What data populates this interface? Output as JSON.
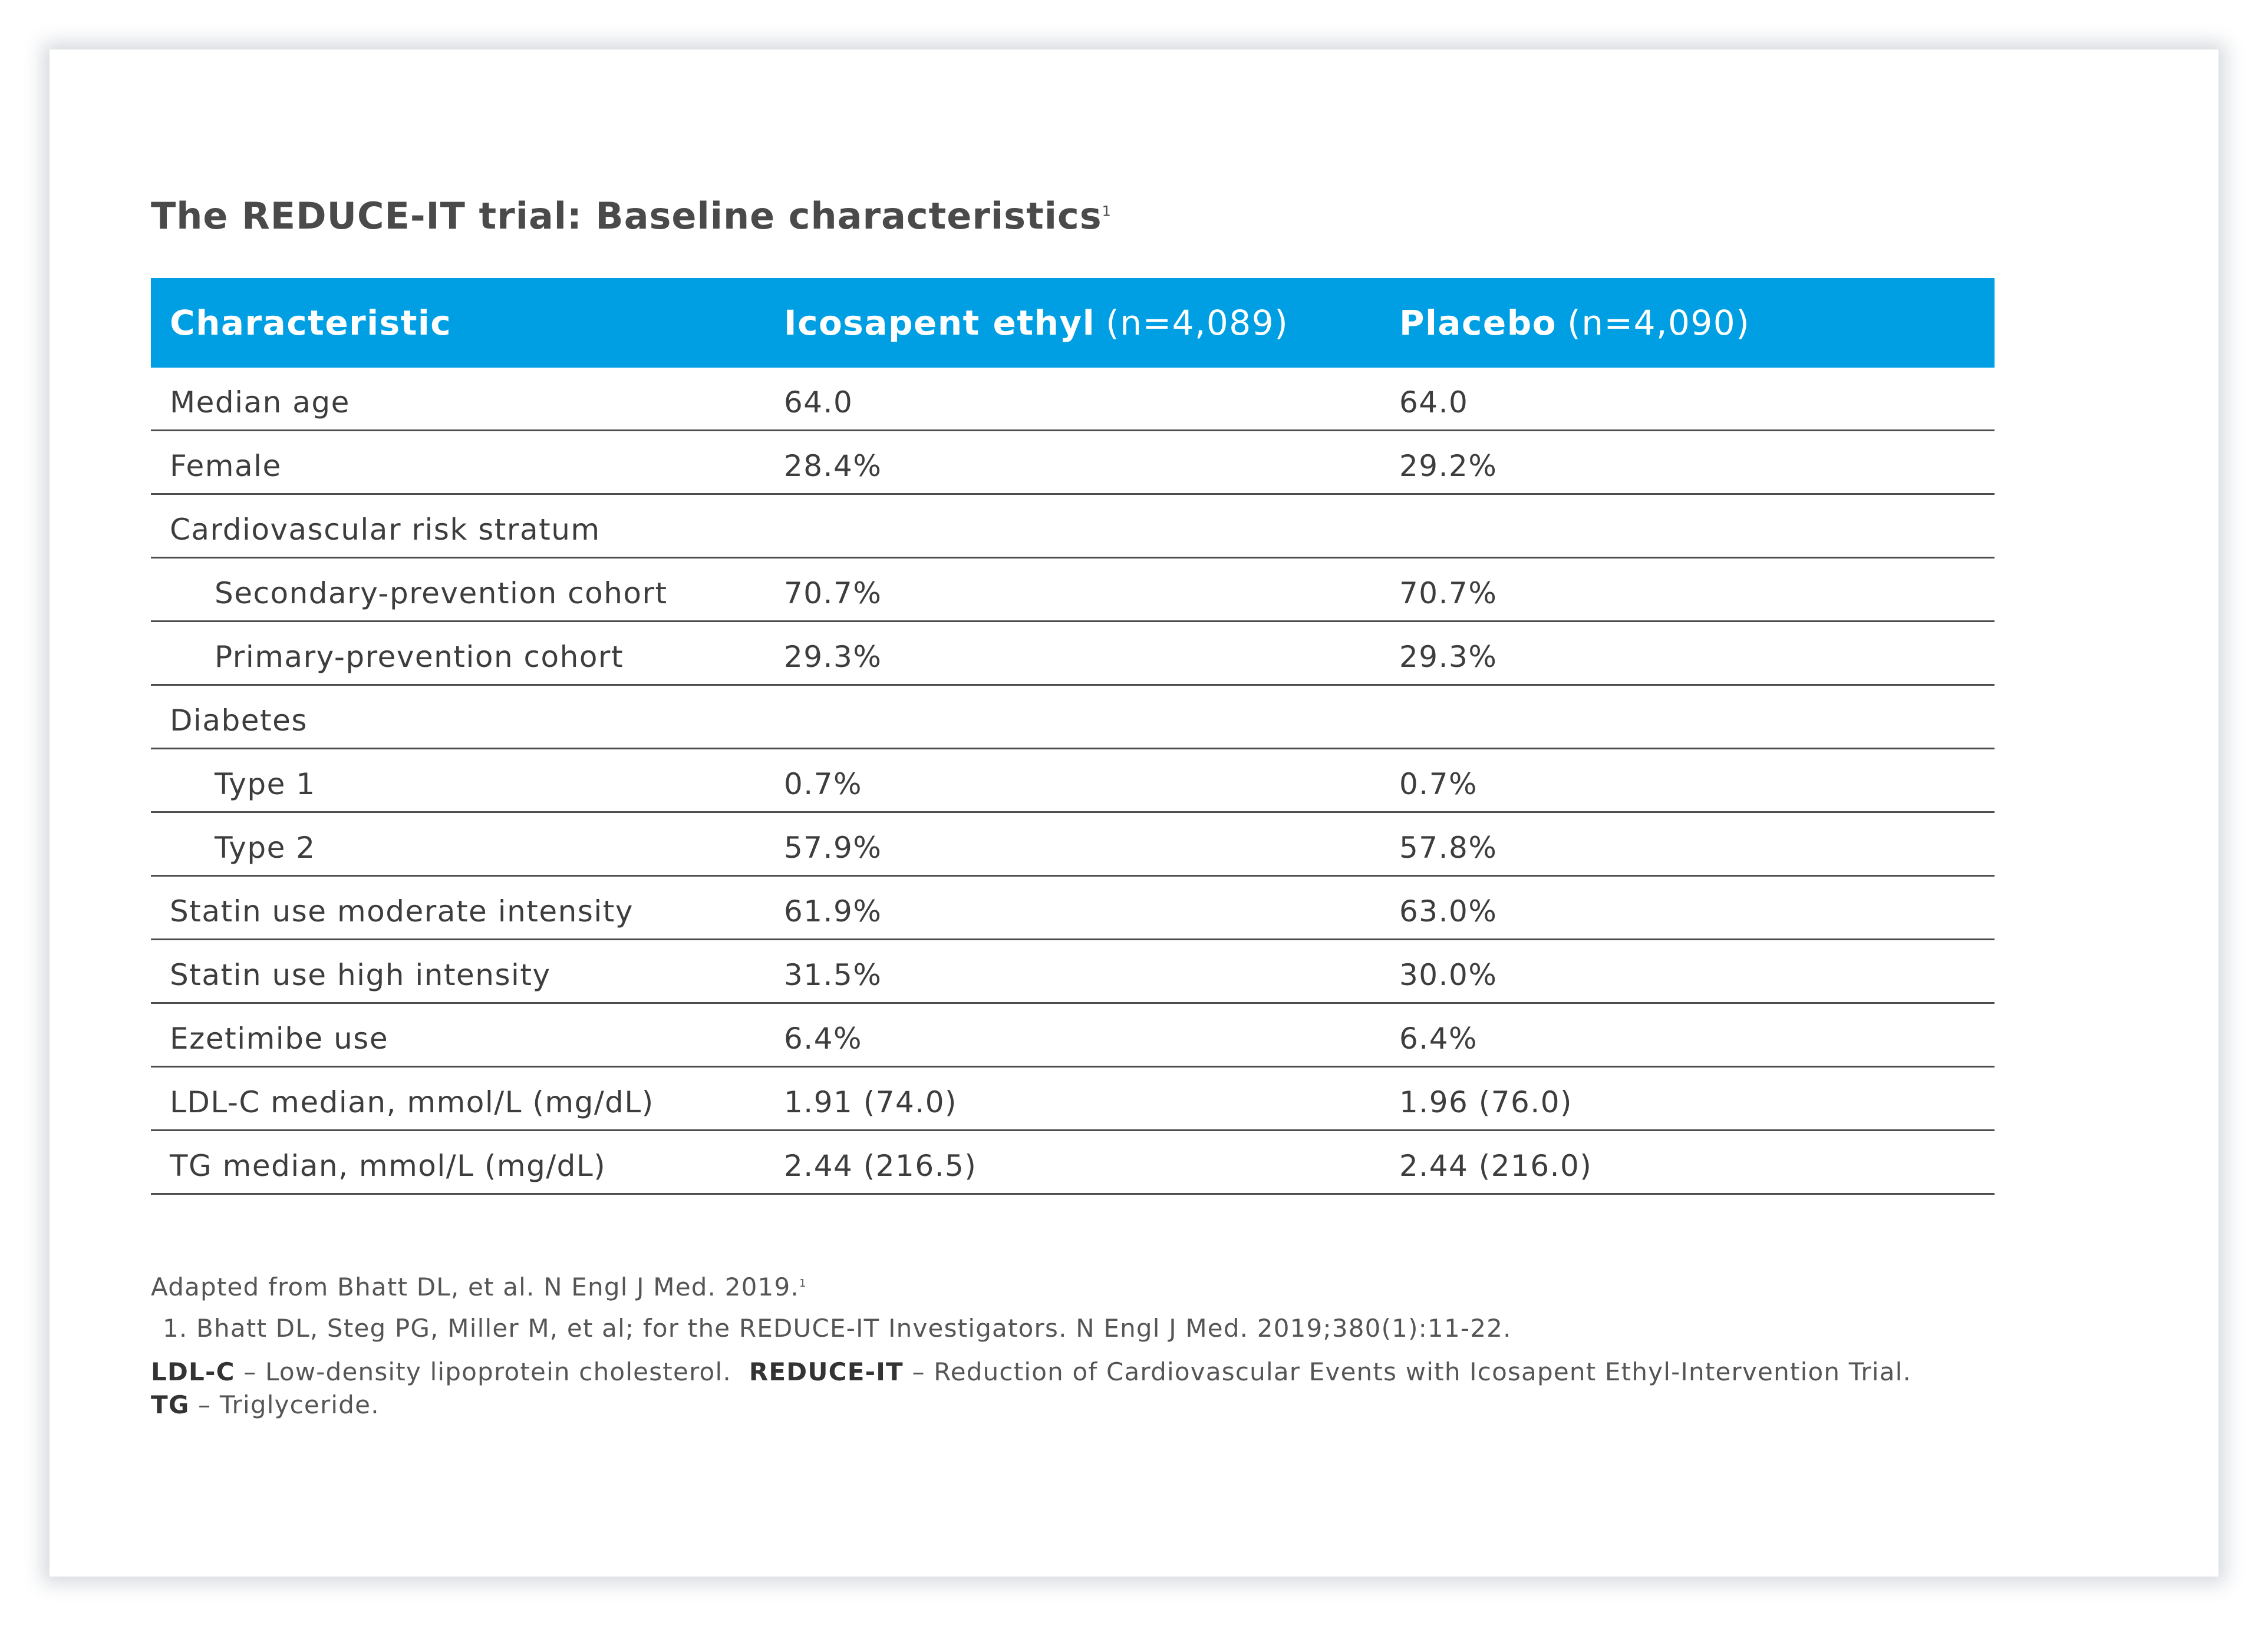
{
  "title": {
    "text": "The REDUCE-IT trial: Baseline characteristics",
    "superscript": "1"
  },
  "table": {
    "header": {
      "characteristic": "Characteristic",
      "group1_name": "Icosapent ethyl",
      "group1_n": "(n=4,089)",
      "group2_name": "Placebo",
      "group2_n": "(n=4,090)"
    },
    "rows": [
      {
        "label": "Median age",
        "indent": false,
        "icosapent": "64.0",
        "placebo": "64.0"
      },
      {
        "label": "Female",
        "indent": false,
        "icosapent": "28.4%",
        "placebo": "29.2%"
      },
      {
        "label": "Cardiovascular risk stratum",
        "indent": false,
        "icosapent": "",
        "placebo": ""
      },
      {
        "label": "Secondary-prevention cohort",
        "indent": true,
        "icosapent": "70.7%",
        "placebo": "70.7%"
      },
      {
        "label": "Primary-prevention cohort",
        "indent": true,
        "icosapent": "29.3%",
        "placebo": "29.3%"
      },
      {
        "label": "Diabetes",
        "indent": false,
        "icosapent": "",
        "placebo": ""
      },
      {
        "label": "Type 1",
        "indent": true,
        "icosapent": "0.7%",
        "placebo": "0.7%"
      },
      {
        "label": "Type 2",
        "indent": true,
        "icosapent": "57.9%",
        "placebo": "57.8%"
      },
      {
        "label": "Statin use moderate intensity",
        "indent": false,
        "icosapent": "61.9%",
        "placebo": "63.0%"
      },
      {
        "label": "Statin use high intensity",
        "indent": false,
        "icosapent": "31.5%",
        "placebo": "30.0%"
      },
      {
        "label": "Ezetimibe use",
        "indent": false,
        "icosapent": "6.4%",
        "placebo": "6.4%"
      },
      {
        "label": "LDL-C median, mmol/L (mg/dL)",
        "indent": false,
        "icosapent": "1.91 (74.0)",
        "placebo": "1.96 (76.0)"
      },
      {
        "label": "TG median, mmol/L (mg/dL)",
        "indent": false,
        "icosapent": "2.44 (216.5)",
        "placebo": "2.44 (216.0)"
      }
    ]
  },
  "notes": {
    "adapted": "Adapted from Bhatt DL, et al. N Engl J Med. 2019.",
    "adapted_sup": "1",
    "reference": "1. Bhatt DL, Steg PG, Miller M, et al; for the REDUCE-IT Investigators. N Engl J Med. 2019;380(1):11-22.",
    "abbr_ldl": "LDL-C",
    "abbr_ldl_def": " – Low-density lipoprotein cholesterol.",
    "abbr_reduce": "REDUCE-IT",
    "abbr_reduce_def": " – Reduction of Cardiovascular Events with Icosapent Ethyl-Intervention Trial.",
    "abbr_tg": "TG",
    "abbr_tg_def": " – Triglyceride."
  },
  "colors": {
    "header_bg": "#009fe3",
    "text": "#3d3d3d"
  }
}
